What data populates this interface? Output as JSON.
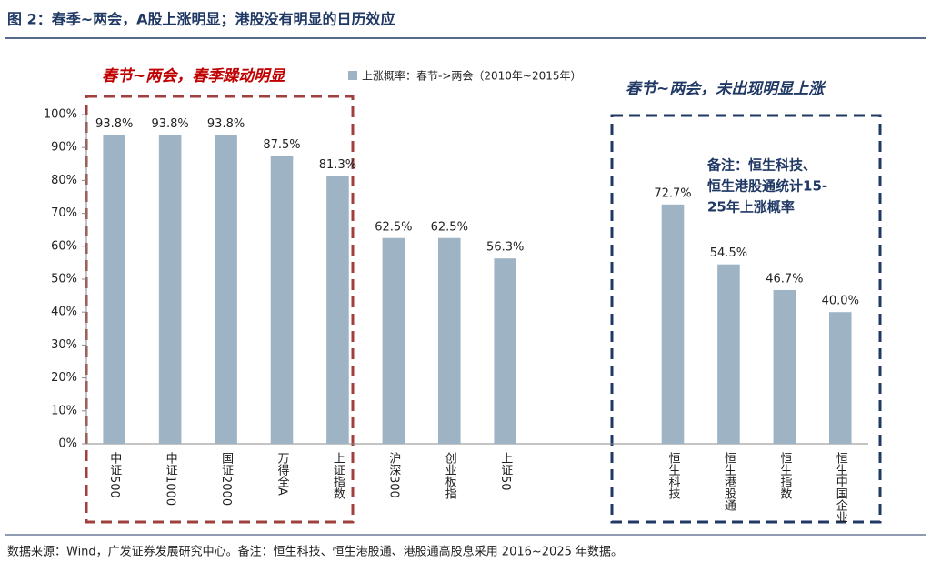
{
  "chart_data": {
    "type": "bar",
    "title": "图 2：春季~两会，A股上涨明显；港股没有明显的日历效应",
    "legend_label": "上涨概率：春节->两会（2010年~2015年）",
    "annotations": [
      "春节~两会，春季躁动明显",
      "春节~两会，未出现明显上涨"
    ],
    "note_lines": [
      "备注：恒生科技、",
      "恒生港股通统计15-",
      "25年上涨概率"
    ],
    "source": "数据来源：Wind，广发证券发展研究中心。备注：恒生科技、恒生港股通、港股通高股息采用 2016~2025 年数据。",
    "categories": [
      "中证500",
      "中证1000",
      "国证2000",
      "万得全A",
      "上证指数",
      "沪深300",
      "创业板指",
      "上证50",
      null,
      null,
      "恒生科技",
      "恒生港股通",
      "恒生指数",
      "恒生中国企业"
    ],
    "values": [
      93.8,
      93.8,
      93.8,
      87.5,
      81.3,
      62.5,
      62.5,
      56.3,
      null,
      null,
      72.7,
      54.5,
      46.7,
      40.0
    ],
    "value_labels": [
      "93.8%",
      "93.8%",
      "93.8%",
      "87.5%",
      "81.3%",
      "62.5%",
      "62.5%",
      "56.3%",
      null,
      null,
      "72.7%",
      "54.5%",
      "46.7%",
      "40.0%"
    ],
    "color": "#9eb3c4",
    "ylim": [
      0,
      100
    ],
    "yticks": [
      {
        "value": 0,
        "label": "0%"
      },
      {
        "value": 10,
        "label": "10%"
      },
      {
        "value": 20,
        "label": "20%"
      },
      {
        "value": 30,
        "label": "30%"
      },
      {
        "value": 40,
        "label": "40%"
      },
      {
        "value": 50,
        "label": "50%"
      },
      {
        "value": 60,
        "label": "60%"
      },
      {
        "value": 70,
        "label": "70%"
      },
      {
        "value": 80,
        "label": "80%"
      },
      {
        "value": 90,
        "label": "90%"
      },
      {
        "value": 100,
        "label": "100%"
      }
    ],
    "grid": false
  }
}
